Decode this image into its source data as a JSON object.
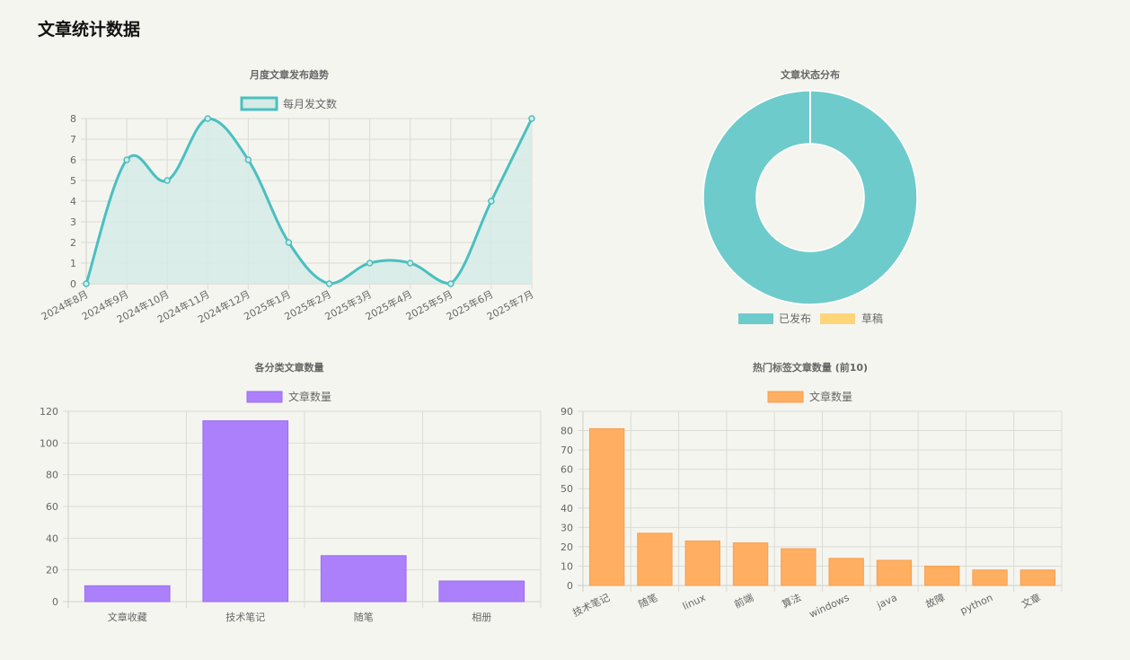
{
  "page": {
    "title": "文章统计数据"
  },
  "chart_data": [
    {
      "id": "monthly",
      "type": "line",
      "title": "月度文章发布趋势",
      "categories": [
        "2024年8月",
        "2024年9月",
        "2024年10月",
        "2024年11月",
        "2024年12月",
        "2025年1月",
        "2025年2月",
        "2025年3月",
        "2025年4月",
        "2025年5月",
        "2025年6月",
        "2025年7月"
      ],
      "series": [
        {
          "name": "每月发文数",
          "values": [
            0,
            6,
            5,
            8,
            6,
            2,
            0,
            1,
            1,
            0,
            4,
            8
          ]
        }
      ],
      "ylim": [
        0,
        8
      ],
      "yticks": [
        0,
        1,
        2,
        3,
        4,
        5,
        6,
        7,
        8
      ],
      "fill": true,
      "color": "#4bbfc0",
      "fill_color": "#d5ebe6",
      "grid": true,
      "legend": "top"
    },
    {
      "id": "status",
      "type": "pie",
      "variant": "doughnut",
      "title": "文章状态分布",
      "labels": [
        "已发布",
        "草稿"
      ],
      "values": [
        100,
        0
      ],
      "colors": [
        "#6ecbcb",
        "#ffd57a"
      ],
      "legend": "bottom"
    },
    {
      "id": "category",
      "type": "bar",
      "title": "各分类文章数量",
      "categories": [
        "文章收藏",
        "技术笔记",
        "随笔",
        "相册"
      ],
      "series": [
        {
          "name": "文章数量",
          "values": [
            10,
            114,
            29,
            13
          ]
        }
      ],
      "ylim": [
        0,
        120
      ],
      "yticks": [
        0,
        20,
        40,
        60,
        80,
        100,
        120
      ],
      "color": "#ab80fa",
      "border_color": "#9b6cf2",
      "grid": true,
      "legend": "top"
    },
    {
      "id": "tags",
      "type": "bar",
      "title": "热门标签文章数量 (前10)",
      "categories": [
        "技术笔记",
        "随笔",
        "linux",
        "前端",
        "算法",
        "windows",
        "java",
        "故障",
        "python",
        "文章"
      ],
      "series": [
        {
          "name": "文章数量",
          "values": [
            81,
            27,
            23,
            22,
            19,
            14,
            13,
            10,
            8,
            8
          ]
        }
      ],
      "ylim": [
        0,
        90
      ],
      "yticks": [
        0,
        10,
        20,
        30,
        40,
        50,
        60,
        70,
        80,
        90
      ],
      "color": "#ffae62",
      "border_color": "#f5a04f",
      "grid": true,
      "legend": "top"
    }
  ]
}
